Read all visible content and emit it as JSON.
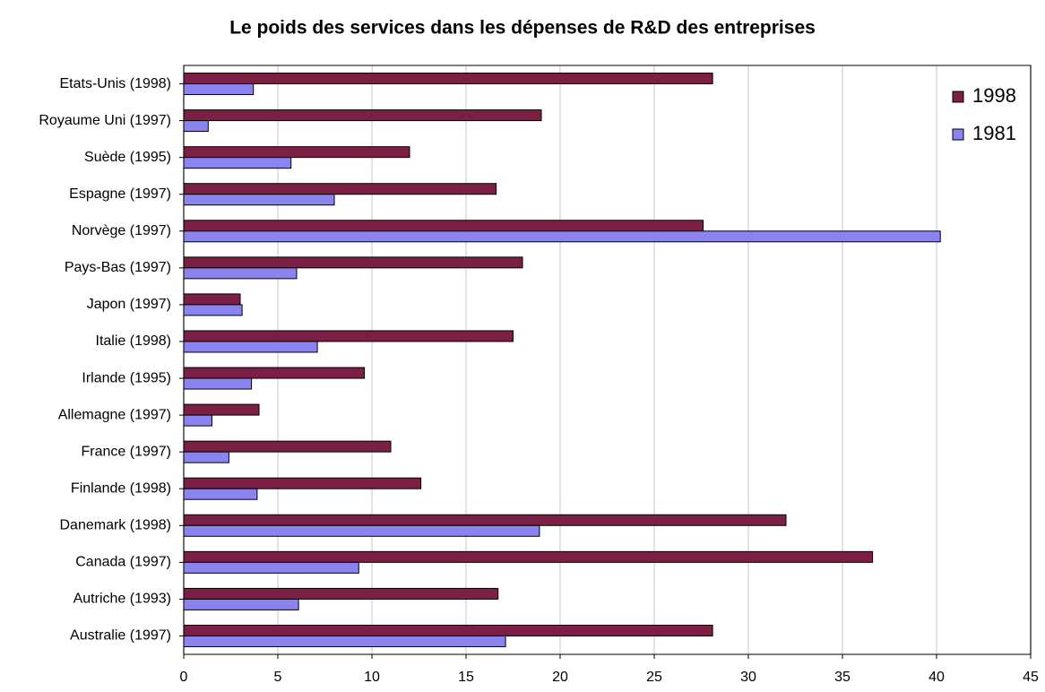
{
  "chart_data": {
    "type": "barh",
    "title": "Le poids des services dans les dépenses de R&D des entreprises",
    "categories": [
      "Etats-Unis (1998)",
      "Royaume Uni (1997)",
      "Suède (1995)",
      "Espagne (1997)",
      "Norvège (1997)",
      "Pays-Bas (1997)",
      "Japon (1997)",
      "Italie (1998)",
      "Irlande (1995)",
      "Allemagne (1997)",
      "France (1997)",
      "Finlande (1998)",
      "Danemark (1998)",
      "Canada (1997)",
      "Autriche (1993)",
      "Australie (1997)"
    ],
    "series": [
      {
        "name": "1998",
        "color": "#7b1f45",
        "values": [
          28.1,
          19.0,
          12.0,
          16.6,
          27.6,
          18.0,
          3.0,
          17.5,
          9.6,
          4.0,
          11.0,
          12.6,
          32.0,
          36.6,
          16.7,
          28.1
        ]
      },
      {
        "name": "1981",
        "color": "#8a84f0",
        "values": [
          3.7,
          1.3,
          5.7,
          8.0,
          40.2,
          6.0,
          3.1,
          7.1,
          3.6,
          1.5,
          2.4,
          3.9,
          18.9,
          9.3,
          6.1,
          17.1
        ]
      }
    ],
    "xlim": [
      0,
      45
    ],
    "xticks": [
      0,
      5,
      10,
      15,
      20,
      25,
      30,
      35,
      40,
      45
    ],
    "grid": true,
    "legend": "top-right"
  }
}
